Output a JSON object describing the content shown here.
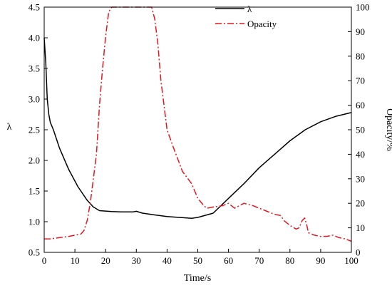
{
  "chart_data": {
    "type": "line",
    "xlabel": "Time/s",
    "ylabel_left": "λ",
    "ylabel_right": "Opacity/%",
    "xlim": [
      0,
      100
    ],
    "ylim_left": [
      0.5,
      4.5
    ],
    "ylim_right": [
      0,
      100
    ],
    "x_ticks": [
      "0",
      "10",
      "20",
      "30",
      "40",
      "50",
      "60",
      "70",
      "80",
      "90",
      "100"
    ],
    "y_left_ticks": [
      "0.5",
      "1.0",
      "1.5",
      "2.0",
      "2.5",
      "3.0",
      "3.5",
      "4.0",
      "4.5"
    ],
    "y_right_ticks": [
      "0",
      "10",
      "20",
      "30",
      "40",
      "50",
      "60",
      "70",
      "80",
      "90",
      "100"
    ],
    "grid": false,
    "legend_position": "top-right",
    "series": [
      {
        "name": "λ",
        "axis": "left",
        "color": "#000000",
        "style": "solid",
        "x": [
          0,
          0.5,
          1,
          1.5,
          2,
          3,
          5,
          8,
          11,
          14,
          16,
          18,
          22,
          25,
          29,
          30,
          32,
          36,
          40,
          44,
          48,
          50,
          55,
          60,
          65,
          70,
          75,
          80,
          85,
          90,
          95,
          100
        ],
        "y": [
          4.0,
          3.6,
          3.0,
          2.75,
          2.62,
          2.5,
          2.2,
          1.85,
          1.57,
          1.35,
          1.24,
          1.18,
          1.165,
          1.16,
          1.16,
          1.17,
          1.14,
          1.11,
          1.085,
          1.07,
          1.055,
          1.07,
          1.14,
          1.38,
          1.62,
          1.88,
          2.1,
          2.32,
          2.5,
          2.63,
          2.72,
          2.78
        ]
      },
      {
        "name": "Opacity",
        "axis": "right",
        "color": "#e8141e",
        "style": "dash-dot",
        "x": [
          0,
          2,
          5,
          8,
          12,
          13,
          14,
          15,
          16,
          17,
          18,
          19,
          20,
          21,
          22,
          24,
          30,
          35,
          36,
          37,
          38,
          39,
          40,
          42,
          45,
          48,
          50,
          52,
          53,
          55,
          58,
          60,
          62,
          65,
          68,
          72,
          75,
          77,
          78,
          80,
          82,
          83,
          84,
          84.8,
          85.5,
          86,
          88,
          90,
          92,
          94,
          96,
          98,
          100
        ],
        "y": [
          5.5,
          5.5,
          6,
          6.5,
          7.5,
          9,
          13,
          20,
          30,
          40,
          60,
          75,
          88,
          98,
          100,
          100,
          100,
          100,
          95,
          85,
          70,
          60,
          50,
          43,
          33,
          28,
          22,
          19,
          18,
          18.5,
          19,
          20,
          18,
          20,
          19,
          17,
          15.5,
          15,
          13,
          11,
          9.5,
          10,
          13,
          14,
          11,
          8,
          7,
          6.5,
          6.5,
          7,
          6,
          5.5,
          4.5
        ]
      }
    ]
  }
}
